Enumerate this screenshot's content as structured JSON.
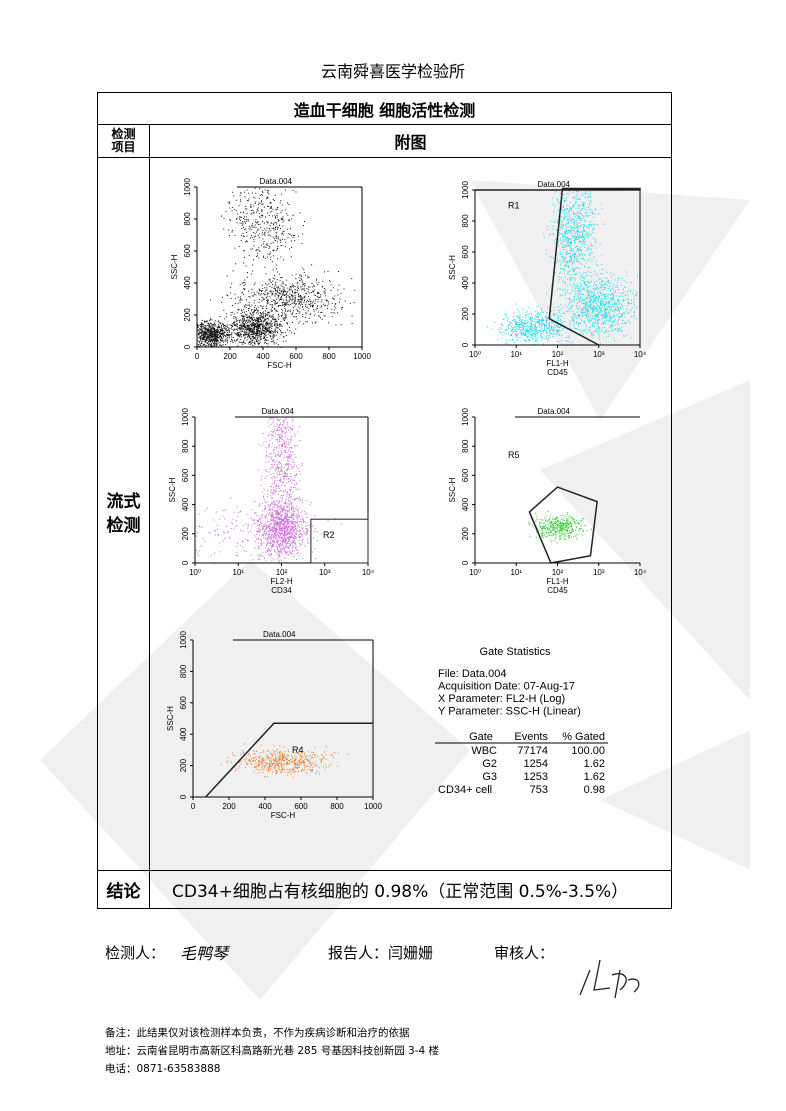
{
  "header": {
    "lab": "云南舜喜医学检验所"
  },
  "table": {
    "title": "造血干细胞 细胞活性检测",
    "col_headers": [
      "检测项目",
      "附图"
    ],
    "row_label": "流式检测",
    "conclusion_label": "结论",
    "conclusion": "CD34+细胞占有核细胞的 0.98%（正常范围 0.5%-3.5%）"
  },
  "plots": [
    {
      "title": "Data.004",
      "x_label": "FSC-H",
      "y_label": "SSC-H",
      "xticks": [
        "0",
        "200",
        "400",
        "600",
        "800",
        "1000"
      ],
      "yticks": [
        "0",
        "200",
        "400",
        "600",
        "800",
        "1000"
      ]
    },
    {
      "title": "Data.004",
      "x_label": "FL1-H",
      "x_sublabel": "CD45",
      "y_label": "SSC-H",
      "xticks": [
        "10⁰",
        "10¹",
        "10²",
        "10³",
        "10⁴"
      ],
      "yticks": [
        "0",
        "200",
        "400",
        "600",
        "800",
        "1000"
      ],
      "region": "R1"
    },
    {
      "title": "Data.004",
      "x_label": "FL2-H",
      "x_sublabel": "CD34",
      "y_label": "SSC-H",
      "xticks": [
        "10⁰",
        "10¹",
        "10²",
        "10³",
        "10⁴"
      ],
      "yticks": [
        "0",
        "200",
        "400",
        "600",
        "800",
        "1000"
      ],
      "region": "R2"
    },
    {
      "title": "Data.004",
      "x_label": "FL1-H",
      "x_sublabel": "CD45",
      "y_label": "SSC-H",
      "xticks": [
        "10⁰",
        "10¹",
        "10²",
        "10³",
        "10⁴"
      ],
      "yticks": [
        "0",
        "200",
        "400",
        "600",
        "800",
        "1000"
      ],
      "region": "R5"
    },
    {
      "title": "Data.004",
      "x_label": "FSC-H",
      "y_label": "SSC-H",
      "xticks": [
        "0",
        "200",
        "400",
        "600",
        "800",
        "1000"
      ],
      "yticks": [
        "0",
        "200",
        "400",
        "600",
        "800",
        "1000"
      ],
      "region": "R4"
    }
  ],
  "stats": {
    "title": "Gate Statistics",
    "lines": [
      "File: Data.004",
      "Acquisition Date: 07-Aug-17",
      "X Parameter: FL2-H (Log)",
      "Y Parameter: SSC-H (Linear)"
    ],
    "columns": [
      "Gate",
      "Events",
      "% Gated"
    ],
    "rows": [
      [
        "WBC",
        "77174",
        "100.00"
      ],
      [
        "G2",
        "1254",
        "1.62"
      ],
      [
        "G3",
        "1253",
        "1.62"
      ],
      [
        "CD34+ cell",
        "753",
        "0.98"
      ]
    ]
  },
  "signatures": {
    "tester_label": "检测人：",
    "tester": "毛鸭琴",
    "reporter": "报告人：闫姗姗",
    "reviewer_label": "审核人："
  },
  "footer": [
    "备注：此结果仅对该检测样本负责，不作为疾病诊断和治疗的依据",
    "地址：云南省昆明市高新区科高路新光巷 285 号基因科技创新园 3-4 楼",
    "电话：0871-63583888"
  ]
}
